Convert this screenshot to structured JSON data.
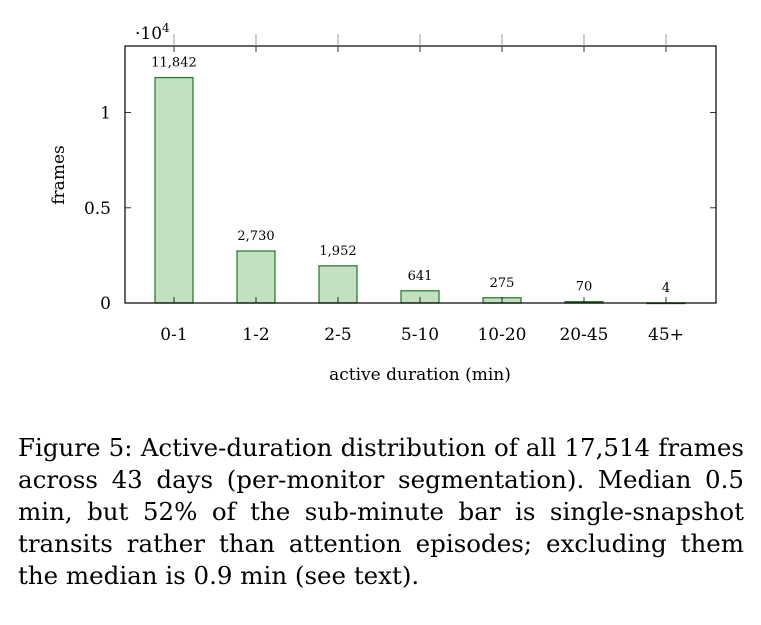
{
  "chart_data": {
    "type": "bar",
    "categories": [
      "0-1",
      "1-2",
      "2-5",
      "5-10",
      "10-20",
      "20-45",
      "45+"
    ],
    "values": [
      11842,
      2730,
      1952,
      641,
      275,
      70,
      4
    ],
    "value_labels": [
      "11,842",
      "2,730",
      "1,952",
      "641",
      "275",
      "70",
      "4"
    ],
    "xlabel": "active duration (min)",
    "ylabel": "frames",
    "ylim": [
      0,
      13500
    ],
    "yticks": [
      0,
      5000,
      10000
    ],
    "ytick_labels": [
      "0",
      "0.5",
      "1"
    ],
    "y_multiplier": "·10",
    "y_multiplier_exp": "4",
    "grid": false,
    "colors": {
      "bar_fill": "#c3e0c1",
      "bar_stroke": "#2e7d32",
      "axis": "#000000"
    }
  },
  "caption": {
    "label": "Figure 5:",
    "text": "Active-duration distribution of all 17,514 frames across 43 days (per-monitor segmentation). Median 0.5 min, but 52% of the sub-minute bar is single-snapshot transits rather than attention episodes; excluding them the median is 0.9 min (see text)."
  }
}
